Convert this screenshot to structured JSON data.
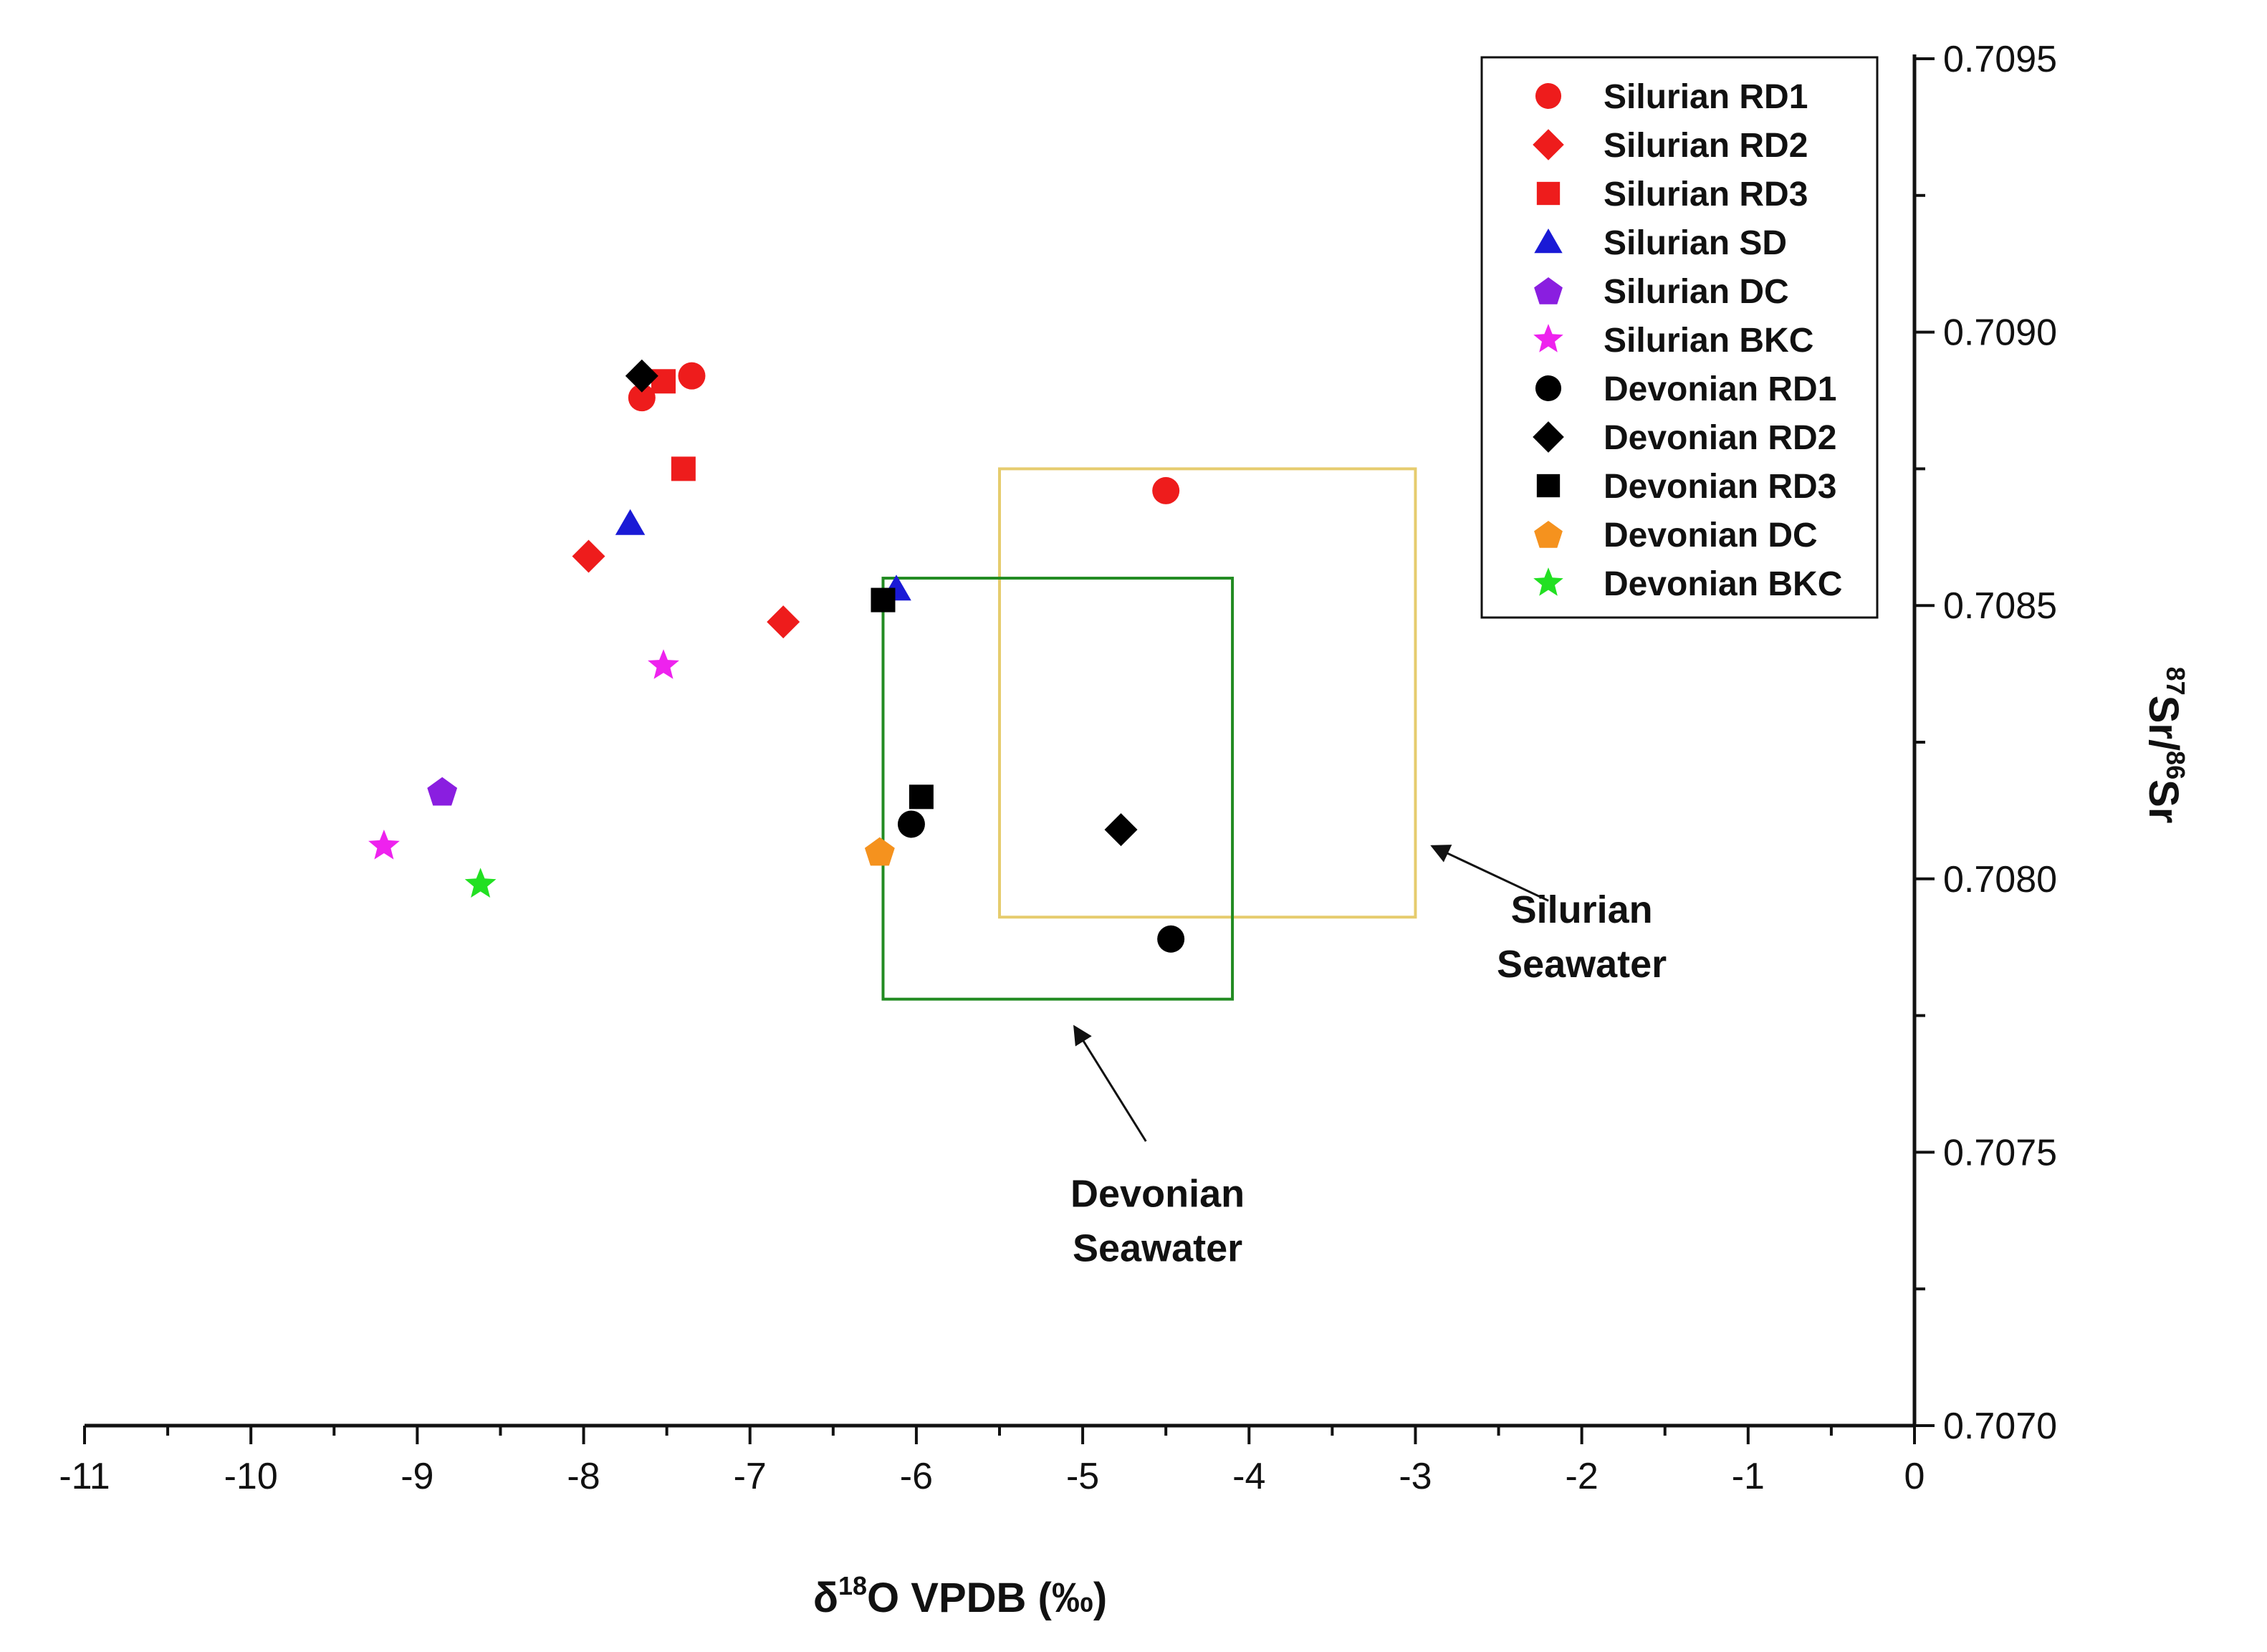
{
  "chart_data": {
    "type": "scatter",
    "xlabel": {
      "prefix": "δ",
      "sup": "18",
      "main": "O VPDB (‰)"
    },
    "ylabel": {
      "sup1": "87",
      "mid": "Sr/",
      "sup2": "86",
      "end": "Sr"
    },
    "xlim": [
      -11,
      0
    ],
    "ylim": [
      0.707,
      0.7095
    ],
    "xticks": [
      -11,
      -10,
      -9,
      -8,
      -7,
      -6,
      -5,
      -4,
      -3,
      -2,
      -1,
      0
    ],
    "xtick_labels": [
      "-11",
      "-10",
      "-9",
      "-8",
      "-7",
      "-6",
      "-5",
      "-4",
      "-3",
      "-2",
      "-1",
      "0"
    ],
    "yticks": [
      0.707,
      0.7075,
      0.708,
      0.7085,
      0.709,
      0.7095
    ],
    "ytick_labels": [
      "0.7070",
      "0.7075",
      "0.7080",
      "0.7085",
      "0.7090",
      "0.7095"
    ],
    "y_axis_side": "right",
    "grid": false,
    "legend_position": "top-right",
    "series": [
      {
        "name": "Silurian RD1",
        "marker": "circle",
        "color": "#ee1c1c",
        "points": [
          [
            -7.35,
            0.70892
          ],
          [
            -7.65,
            0.70888
          ],
          [
            -4.5,
            0.70871
          ]
        ]
      },
      {
        "name": "Silurian RD2",
        "marker": "diamond",
        "color": "#ee1c1c",
        "points": [
          [
            -7.97,
            0.70859
          ],
          [
            -6.8,
            0.70847
          ]
        ]
      },
      {
        "name": "Silurian RD3",
        "marker": "square",
        "color": "#ee1c1c",
        "points": [
          [
            -7.52,
            0.70891
          ],
          [
            -7.4,
            0.70875
          ]
        ]
      },
      {
        "name": "Silurian SD",
        "marker": "triangle",
        "color": "#1a1ad6",
        "points": [
          [
            -7.72,
            0.70865
          ],
          [
            -6.12,
            0.70853
          ]
        ]
      },
      {
        "name": "Silurian DC",
        "marker": "pentagon",
        "color": "#8a1ee0",
        "points": [
          [
            -8.85,
            0.70816
          ]
        ]
      },
      {
        "name": "Silurian BKC",
        "marker": "star",
        "color": "#ee22ee",
        "points": [
          [
            -7.52,
            0.70839
          ],
          [
            -9.2,
            0.70806
          ]
        ]
      },
      {
        "name": "Devonian RD1",
        "marker": "circle",
        "color": "#000000",
        "points": [
          [
            -6.03,
            0.7081
          ],
          [
            -4.47,
            0.70789
          ]
        ]
      },
      {
        "name": "Devonian RD2",
        "marker": "diamond",
        "color": "#000000",
        "points": [
          [
            -7.65,
            0.70892
          ],
          [
            -4.77,
            0.70809
          ]
        ]
      },
      {
        "name": "Devonian RD3",
        "marker": "square",
        "color": "#000000",
        "points": [
          [
            -6.2,
            0.70851
          ],
          [
            -5.97,
            0.70815
          ]
        ]
      },
      {
        "name": "Devonian DC",
        "marker": "pentagon",
        "color": "#f5921e",
        "points": [
          [
            -6.22,
            0.70805
          ]
        ]
      },
      {
        "name": "Devonian BKC",
        "marker": "star",
        "color": "#22e022",
        "points": [
          [
            -8.62,
            0.70799
          ]
        ]
      }
    ],
    "boxes": [
      {
        "name": "Silurian Seawater",
        "color": "#e6cc6e",
        "x_range": [
          -5.5,
          -3.0
        ],
        "y_range": [
          0.70793,
          0.70875
        ]
      },
      {
        "name": "Devonian Seawater",
        "color": "#228b22",
        "x_range": [
          -6.2,
          -4.1
        ],
        "y_range": [
          0.70778,
          0.70855
        ]
      }
    ],
    "annotations": [
      {
        "lines": [
          "Silurian",
          "Seawater"
        ],
        "text_at": [
          -2.0,
          0.70792
        ],
        "arrow_from": [
          -2.2,
          0.70796
        ],
        "arrow_to": [
          -2.9,
          0.70806
        ]
      },
      {
        "lines": [
          "Devonian",
          "Seawater"
        ],
        "text_at": [
          -4.55,
          0.7074
        ],
        "arrow_from": [
          -4.62,
          0.70752
        ],
        "arrow_to": [
          -5.05,
          0.70773
        ]
      }
    ]
  }
}
